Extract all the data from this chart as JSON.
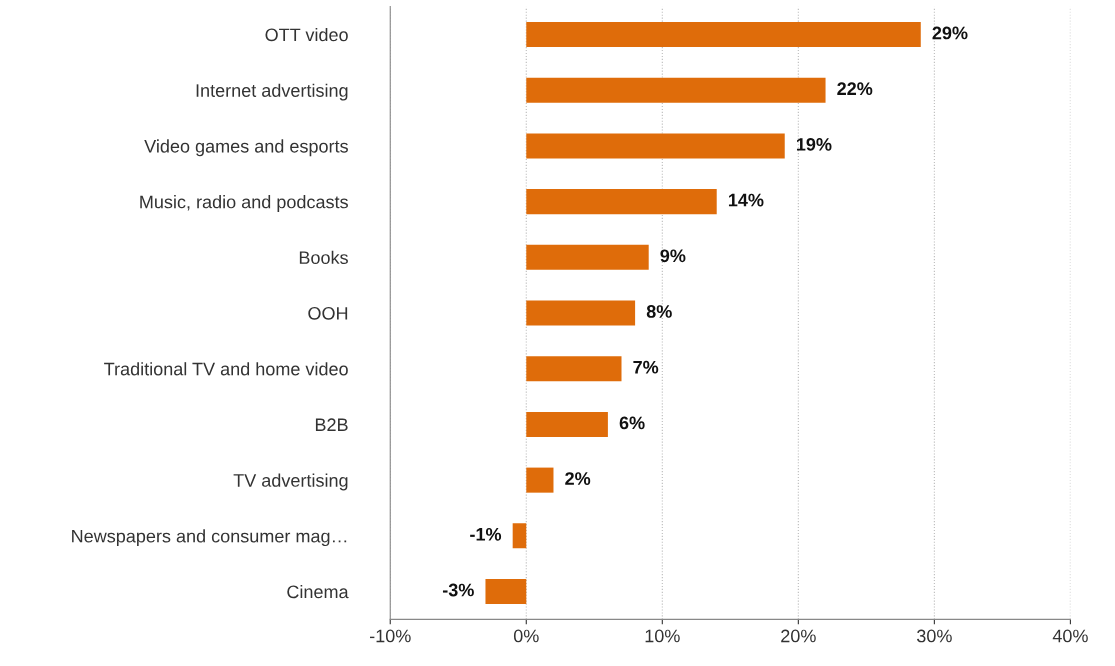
{
  "chart_data": {
    "type": "bar",
    "orientation": "horizontal",
    "categories": [
      "OTT video",
      "Internet advertising",
      "Video games and esports",
      "Music, radio and podcasts",
      "Books",
      "OOH",
      "Traditional TV and home video",
      "B2B",
      "TV advertising",
      "Newspapers and consumer mag…",
      "Cinema"
    ],
    "values": [
      29,
      22,
      19,
      14,
      9,
      8,
      7,
      6,
      2,
      -1,
      -3
    ],
    "color": "#df6c0a",
    "value_labels": [
      "29%",
      "22%",
      "19%",
      "14%",
      "9%",
      "8%",
      "7%",
      "6%",
      "2%",
      "-1%",
      "-3%"
    ],
    "xlim": [
      -10,
      40
    ],
    "xticks": [
      {
        "value": -10,
        "label": "-10%"
      },
      {
        "value": 0,
        "label": "0%"
      },
      {
        "value": 10,
        "label": "10%"
      },
      {
        "value": 20,
        "label": "20%"
      },
      {
        "value": 30,
        "label": "30%"
      },
      {
        "value": 40,
        "label": "40%"
      }
    ],
    "grid": "x",
    "legend": false
  }
}
